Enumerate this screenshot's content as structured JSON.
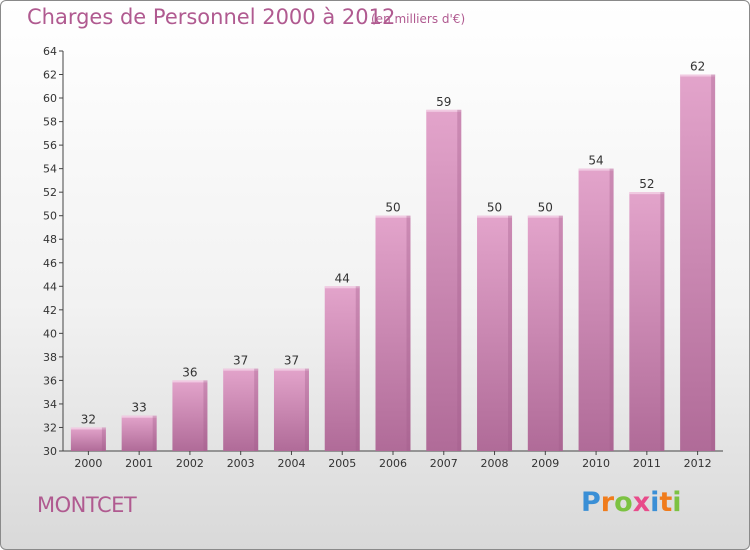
{
  "header": {
    "title": "Charges de Personnel 2000 à 2012",
    "unit": "(en milliers d'€)"
  },
  "footer": {
    "place": "MONTCET",
    "logo": {
      "letters": [
        "P",
        "r",
        "o",
        "x",
        "i",
        "t",
        "i"
      ],
      "colors": [
        "#3a8fd6",
        "#f07c1c",
        "#7cc242",
        "#e84b8a",
        "#3a8fd6",
        "#f07c1c",
        "#7cc242"
      ]
    }
  },
  "colors": {
    "bar_top": "#e3a4cb",
    "bar_bottom": "#b06b98",
    "text_accent": "#b05a90"
  },
  "chart_data": {
    "type": "bar",
    "title": "Charges de Personnel 2000 à 2012",
    "subtitle": "(en milliers d'€)",
    "xlabel": "",
    "ylabel": "",
    "categories": [
      "2000",
      "2001",
      "2002",
      "2003",
      "2004",
      "2005",
      "2006",
      "2007",
      "2008",
      "2009",
      "2010",
      "2011",
      "2012"
    ],
    "values": [
      32,
      33,
      36,
      37,
      37,
      44,
      50,
      59,
      50,
      50,
      54,
      52,
      62
    ],
    "ylim": [
      30,
      64
    ],
    "yticks": [
      30,
      32,
      34,
      36,
      38,
      40,
      42,
      44,
      46,
      48,
      50,
      52,
      54,
      56,
      58,
      60,
      62,
      64
    ],
    "grid": false,
    "legend": "none"
  }
}
